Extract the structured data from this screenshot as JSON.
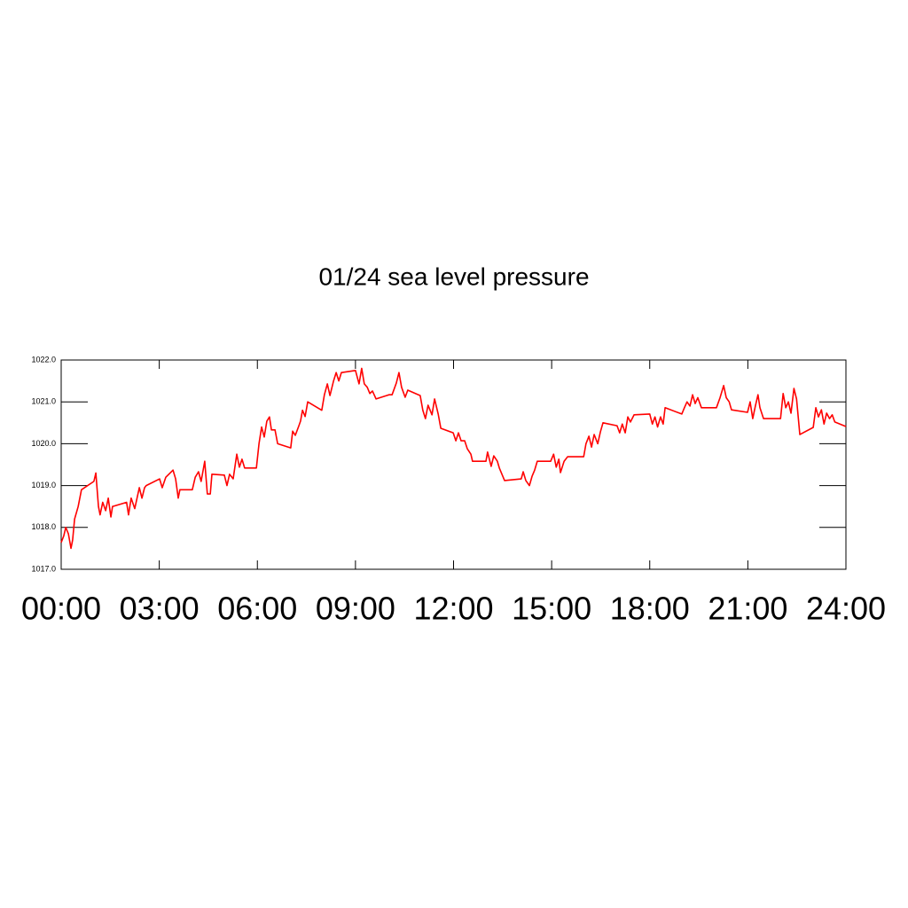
{
  "chart_data": {
    "type": "line",
    "title": "01/24 sea level pressure",
    "x": [
      0.0,
      0.08,
      0.14,
      0.22,
      0.3,
      0.35,
      0.41,
      0.52,
      0.62,
      1.0,
      1.06,
      1.14,
      1.19,
      1.27,
      1.36,
      1.44,
      1.52,
      1.57,
      2.0,
      2.06,
      2.14,
      2.25,
      2.39,
      2.47,
      2.55,
      2.6,
      3.01,
      3.09,
      3.2,
      3.42,
      3.5,
      3.58,
      3.63,
      4.01,
      4.1,
      4.2,
      4.28,
      4.39,
      4.47,
      4.56,
      4.61,
      4.99,
      5.07,
      5.15,
      5.26,
      5.37,
      5.45,
      5.53,
      5.61,
      5.97,
      6.05,
      6.13,
      6.21,
      6.29,
      6.37,
      6.43,
      6.54,
      6.62,
      7.02,
      7.08,
      7.16,
      7.27,
      7.32,
      7.38,
      7.46,
      7.54,
      7.97,
      8.05,
      8.14,
      8.22,
      8.33,
      8.41,
      8.49,
      8.57,
      9.0,
      9.11,
      9.19,
      9.27,
      9.36,
      9.44,
      9.52,
      9.63,
      9.95,
      10.03,
      10.12,
      10.25,
      10.33,
      10.41,
      10.52,
      10.6,
      10.98,
      11.06,
      11.14,
      11.22,
      11.34,
      11.42,
      11.53,
      11.61,
      11.99,
      12.07,
      12.15,
      12.23,
      12.34,
      12.42,
      12.53,
      12.58,
      12.99,
      13.04,
      13.15,
      13.23,
      13.34,
      13.4,
      13.56,
      14.07,
      14.13,
      14.21,
      14.32,
      14.4,
      14.48,
      14.56,
      14.97,
      15.06,
      15.14,
      15.22,
      15.27,
      15.38,
      15.49,
      15.98,
      16.05,
      16.14,
      16.22,
      16.3,
      16.41,
      16.49,
      16.57,
      17.0,
      17.08,
      17.16,
      17.25,
      17.33,
      17.41,
      17.52,
      18.0,
      18.08,
      18.16,
      18.24,
      18.33,
      18.41,
      18.47,
      18.98,
      19.06,
      19.14,
      19.23,
      19.31,
      19.39,
      19.47,
      19.58,
      20.04,
      20.15,
      20.26,
      20.34,
      20.43,
      20.5,
      20.99,
      21.07,
      21.15,
      21.23,
      21.31,
      21.37,
      21.48,
      22.0,
      22.08,
      22.16,
      22.24,
      22.32,
      22.41,
      22.49,
      22.59,
      23.0,
      23.08,
      23.16,
      23.25,
      23.33,
      23.41,
      23.5,
      23.58,
      23.66,
      24.0
    ],
    "series": [
      {
        "color": "#ff0000",
        "values": [
          1017.64,
          1017.8,
          1018.0,
          1017.85,
          1017.5,
          1017.7,
          1018.2,
          1018.5,
          1018.9,
          1019.1,
          1019.3,
          1018.5,
          1018.3,
          1018.6,
          1018.4,
          1018.7,
          1018.25,
          1018.5,
          1018.6,
          1018.3,
          1018.7,
          1018.45,
          1018.95,
          1018.7,
          1018.95,
          1019.0,
          1019.16,
          1018.95,
          1019.2,
          1019.37,
          1019.16,
          1018.7,
          1018.9,
          1018.9,
          1019.2,
          1019.33,
          1019.1,
          1019.58,
          1018.8,
          1018.8,
          1019.27,
          1019.25,
          1019.0,
          1019.27,
          1019.16,
          1019.75,
          1019.44,
          1019.63,
          1019.42,
          1019.42,
          1020.0,
          1020.4,
          1020.16,
          1020.54,
          1020.64,
          1020.33,
          1020.33,
          1020.0,
          1019.9,
          1020.3,
          1020.2,
          1020.43,
          1020.54,
          1020.8,
          1020.65,
          1021.0,
          1020.8,
          1021.17,
          1021.43,
          1021.15,
          1021.5,
          1021.7,
          1021.5,
          1021.7,
          1021.75,
          1021.43,
          1021.8,
          1021.43,
          1021.35,
          1021.2,
          1021.26,
          1021.07,
          1021.15,
          1021.17,
          1021.17,
          1021.45,
          1021.7,
          1021.35,
          1021.11,
          1021.28,
          1021.15,
          1020.8,
          1020.6,
          1020.92,
          1020.69,
          1021.07,
          1020.71,
          1020.37,
          1020.26,
          1020.07,
          1020.26,
          1020.07,
          1020.07,
          1019.88,
          1019.75,
          1019.58,
          1019.58,
          1019.8,
          1019.46,
          1019.71,
          1019.58,
          1019.42,
          1019.12,
          1019.16,
          1019.33,
          1019.12,
          1019.0,
          1019.22,
          1019.37,
          1019.58,
          1019.58,
          1019.75,
          1019.44,
          1019.63,
          1019.31,
          1019.58,
          1019.69,
          1019.69,
          1020.0,
          1020.18,
          1019.92,
          1020.22,
          1020.0,
          1020.28,
          1020.5,
          1020.43,
          1020.26,
          1020.47,
          1020.26,
          1020.64,
          1020.52,
          1020.69,
          1020.71,
          1020.47,
          1020.64,
          1020.4,
          1020.64,
          1020.47,
          1020.86,
          1020.71,
          1020.86,
          1021.0,
          1020.9,
          1021.17,
          1020.96,
          1021.1,
          1020.86,
          1020.86,
          1021.1,
          1021.39,
          1021.1,
          1021.0,
          1020.81,
          1020.75,
          1021.0,
          1020.6,
          1020.9,
          1021.17,
          1020.86,
          1020.6,
          1020.6,
          1021.2,
          1020.86,
          1021.0,
          1020.73,
          1021.32,
          1021.07,
          1020.22,
          1020.39,
          1020.86,
          1020.64,
          1020.81,
          1020.47,
          1020.73,
          1020.6,
          1020.69,
          1020.52,
          1020.41
        ]
      }
    ],
    "xlim": [
      0,
      24
    ],
    "xticks": [
      {
        "value": 0,
        "label": "00:00"
      },
      {
        "value": 3,
        "label": "03:00"
      },
      {
        "value": 6,
        "label": "06:00"
      },
      {
        "value": 9,
        "label": "09:00"
      },
      {
        "value": 12,
        "label": "12:00"
      },
      {
        "value": 15,
        "label": "15:00"
      },
      {
        "value": 18,
        "label": "18:00"
      },
      {
        "value": 21,
        "label": "21:00"
      },
      {
        "value": 24,
        "label": "24:00"
      }
    ],
    "ylim": [
      1017,
      1022
    ],
    "yticks": [
      {
        "value": 1017,
        "label": "1017.0"
      },
      {
        "value": 1018,
        "label": "1018.0"
      },
      {
        "value": 1019,
        "label": "1019.0"
      },
      {
        "value": 1020,
        "label": "1020.0"
      },
      {
        "value": 1021,
        "label": "1021.0"
      },
      {
        "value": 1022,
        "label": "1022.0"
      }
    ],
    "grid": false
  }
}
